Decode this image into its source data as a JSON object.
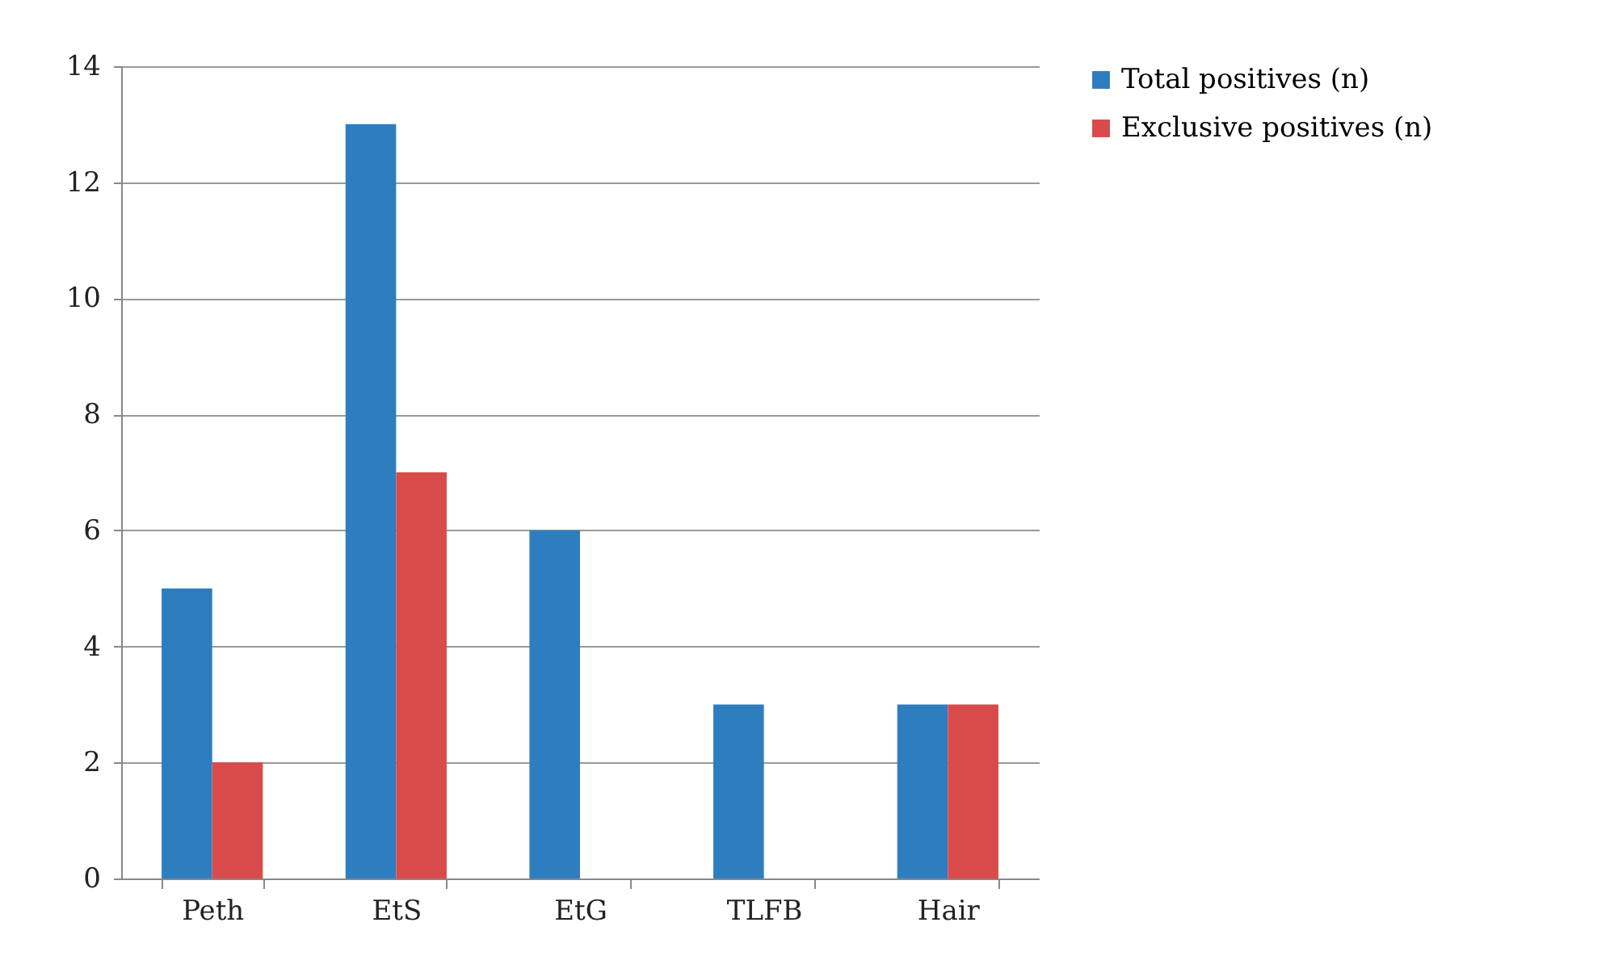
{
  "chart_data": {
    "type": "bar",
    "categories": [
      "Peth",
      "EtS",
      "EtG",
      "TLFB",
      "Hair"
    ],
    "series": [
      {
        "name": "Total positives (n)",
        "color": "#2e7ebf",
        "values": [
          5,
          13,
          6,
          3,
          3
        ]
      },
      {
        "name": "Exclusive positives (n)",
        "color": "#d94a4a",
        "values": [
          2,
          7,
          0,
          0,
          3
        ]
      }
    ],
    "ylim": [
      0,
      14
    ],
    "yticks": [
      0,
      2,
      4,
      6,
      8,
      10,
      12,
      14
    ],
    "grid": "y",
    "legend": "right"
  }
}
